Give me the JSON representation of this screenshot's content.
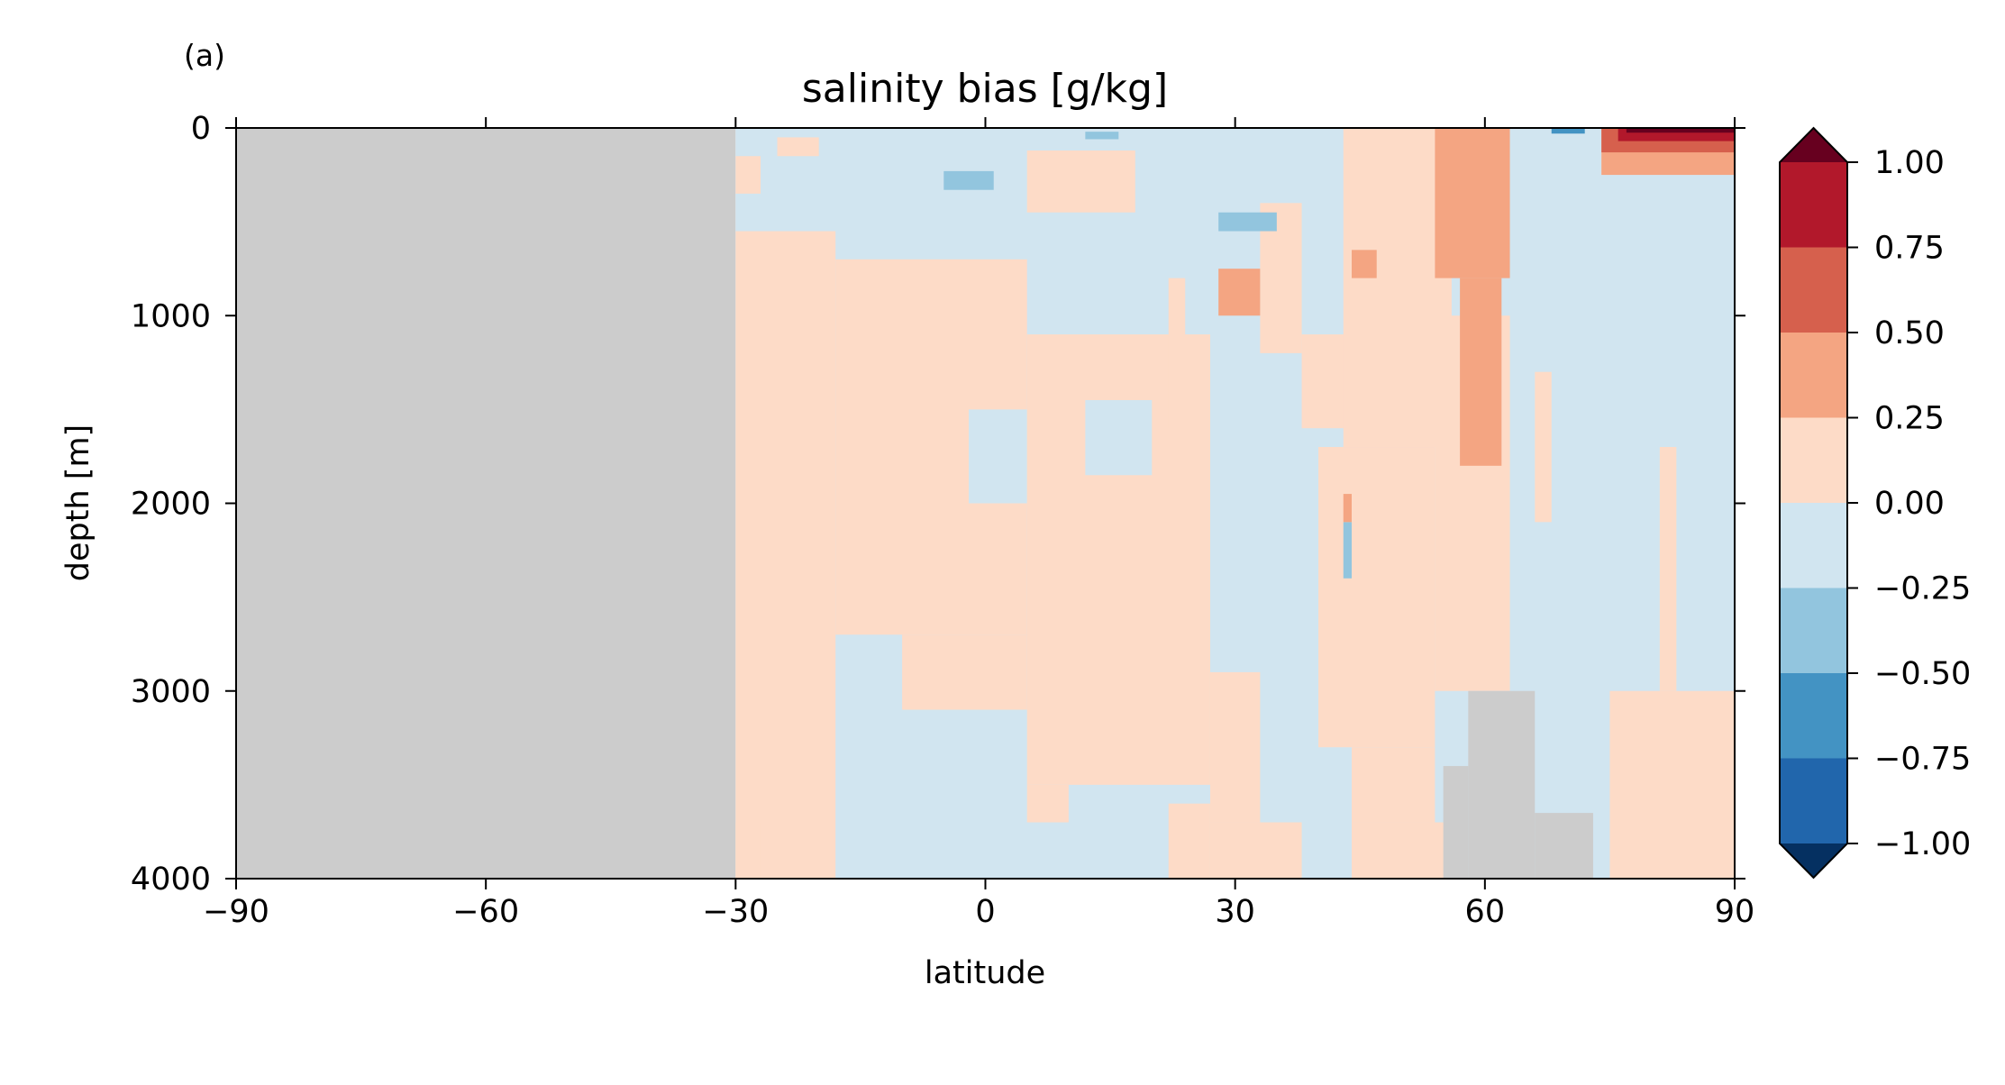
{
  "chart_data": {
    "type": "heatmap",
    "panel_label": "(a)",
    "title": "salinity bias [g/kg]",
    "xlabel": "latitude",
    "ylabel": "depth [m]",
    "xlim": [
      -90,
      90
    ],
    "ylim": [
      4000,
      0
    ],
    "y_inverted": true,
    "x_ticks": [
      -90,
      -60,
      -30,
      0,
      30,
      60,
      90
    ],
    "x_tick_labels": [
      "−90",
      "−60",
      "−30",
      "0",
      "30",
      "60",
      "90"
    ],
    "y_ticks": [
      0,
      1000,
      2000,
      3000,
      4000
    ],
    "y_tick_labels": [
      "0",
      "1000",
      "2000",
      "3000",
      "4000"
    ],
    "masked_color": "#cccccc",
    "colorbar": {
      "levels": [
        -1.0,
        -0.75,
        -0.5,
        -0.25,
        0.0,
        0.25,
        0.5,
        0.75,
        1.0
      ],
      "tick_labels": [
        "−1.00",
        "−0.75",
        "−0.50",
        "−0.25",
        "0.00",
        "0.25",
        "0.50",
        "0.75",
        "1.00"
      ],
      "colors": [
        "#053061",
        "#2166ac",
        "#4393c3",
        "#92c5de",
        "#d1e5f0",
        "#fddbc7",
        "#f4a582",
        "#d6604d",
        "#b2182b",
        "#67001f"
      ],
      "extend": "both"
    },
    "cells": [
      {
        "lat": [
          -90,
          -30
        ],
        "depth": [
          0,
          4000
        ],
        "value": null
      },
      {
        "lat": [
          -30,
          90
        ],
        "depth": [
          0,
          4000
        ],
        "value": -0.1
      },
      {
        "lat": [
          -30,
          -18
        ],
        "depth": [
          550,
          4000
        ],
        "value": 0.1
      },
      {
        "lat": [
          -18,
          5
        ],
        "depth": [
          700,
          2700
        ],
        "value": 0.1
      },
      {
        "lat": [
          -10,
          5
        ],
        "depth": [
          2700,
          3100
        ],
        "value": 0.1
      },
      {
        "lat": [
          -2,
          5
        ],
        "depth": [
          1500,
          2000
        ],
        "value": -0.1
      },
      {
        "lat": [
          5,
          27
        ],
        "depth": [
          1100,
          3500
        ],
        "value": 0.1
      },
      {
        "lat": [
          5,
          10
        ],
        "depth": [
          3500,
          3700
        ],
        "value": 0.1
      },
      {
        "lat": [
          12,
          20
        ],
        "depth": [
          1450,
          1850
        ],
        "value": -0.1
      },
      {
        "lat": [
          -30,
          -27
        ],
        "depth": [
          3700,
          4000
        ],
        "value": 0.1
      },
      {
        "lat": [
          -30,
          -27
        ],
        "depth": [
          150,
          350
        ],
        "value": 0.1
      },
      {
        "lat": [
          -25,
          -20
        ],
        "depth": [
          50,
          150
        ],
        "value": 0.1
      },
      {
        "lat": [
          5,
          18
        ],
        "depth": [
          120,
          450
        ],
        "value": 0.1
      },
      {
        "lat": [
          22,
          24
        ],
        "depth": [
          800,
          1600
        ],
        "value": 0.1
      },
      {
        "lat": [
          27,
          33
        ],
        "depth": [
          2900,
          3700
        ],
        "value": 0.1
      },
      {
        "lat": [
          22,
          27
        ],
        "depth": [
          3600,
          4000
        ],
        "value": 0.1
      },
      {
        "lat": [
          27,
          38
        ],
        "depth": [
          3700,
          4000
        ],
        "value": 0.1
      },
      {
        "lat": [
          33,
          38
        ],
        "depth": [
          400,
          1200
        ],
        "value": 0.1
      },
      {
        "lat": [
          38,
          44
        ],
        "depth": [
          1100,
          1600
        ],
        "value": 0.1
      },
      {
        "lat": [
          40,
          54
        ],
        "depth": [
          1700,
          3300
        ],
        "value": 0.1
      },
      {
        "lat": [
          44,
          54
        ],
        "depth": [
          3300,
          3700
        ],
        "value": 0.1
      },
      {
        "lat": [
          44,
          56
        ],
        "depth": [
          3700,
          4000
        ],
        "value": 0.1
      },
      {
        "lat": [
          43,
          56
        ],
        "depth": [
          0,
          1700
        ],
        "value": 0.1
      },
      {
        "lat": [
          54,
          63
        ],
        "depth": [
          1000,
          3000
        ],
        "value": 0.1
      },
      {
        "lat": [
          66,
          68
        ],
        "depth": [
          1300,
          2100
        ],
        "value": 0.1
      },
      {
        "lat": [
          75,
          90
        ],
        "depth": [
          3000,
          4000
        ],
        "value": 0.1
      },
      {
        "lat": [
          81,
          83
        ],
        "depth": [
          1700,
          3000
        ],
        "value": 0.1
      },
      {
        "lat": [
          74,
          90
        ],
        "depth": [
          0,
          250
        ],
        "value": 0.1
      },
      {
        "lat": [
          -5,
          1
        ],
        "depth": [
          230,
          330
        ],
        "value": -0.3
      },
      {
        "lat": [
          28,
          35
        ],
        "depth": [
          450,
          550
        ],
        "value": -0.3
      },
      {
        "lat": [
          43,
          44
        ],
        "depth": [
          2100,
          2400
        ],
        "value": -0.3
      },
      {
        "lat": [
          12,
          16
        ],
        "depth": [
          20,
          60
        ],
        "value": -0.3
      },
      {
        "lat": [
          54,
          63
        ],
        "depth": [
          0,
          800
        ],
        "value": 0.35
      },
      {
        "lat": [
          57,
          62
        ],
        "depth": [
          800,
          1800
        ],
        "value": 0.35
      },
      {
        "lat": [
          28,
          33
        ],
        "depth": [
          750,
          1000
        ],
        "value": 0.35
      },
      {
        "lat": [
          44,
          47
        ],
        "depth": [
          650,
          800
        ],
        "value": 0.35
      },
      {
        "lat": [
          43,
          44
        ],
        "depth": [
          1950,
          2100
        ],
        "value": 0.35
      },
      {
        "lat": [
          74,
          90
        ],
        "depth": [
          0,
          250
        ],
        "value": 0.35
      },
      {
        "lat": [
          74,
          90
        ],
        "depth": [
          0,
          130
        ],
        "value": 0.6
      },
      {
        "lat": [
          76,
          90
        ],
        "depth": [
          0,
          70
        ],
        "value": 0.9
      },
      {
        "lat": [
          77,
          90
        ],
        "depth": [
          0,
          25
        ],
        "value": 1.1
      },
      {
        "lat": [
          68,
          72
        ],
        "depth": [
          0,
          30
        ],
        "value": -0.6
      },
      {
        "lat": [
          55,
          58
        ],
        "depth": [
          3400,
          4000
        ],
        "value": null
      },
      {
        "lat": [
          58,
          66
        ],
        "depth": [
          3000,
          4000
        ],
        "value": null
      },
      {
        "lat": [
          66,
          73
        ],
        "depth": [
          3650,
          4000
        ],
        "value": null
      }
    ]
  }
}
